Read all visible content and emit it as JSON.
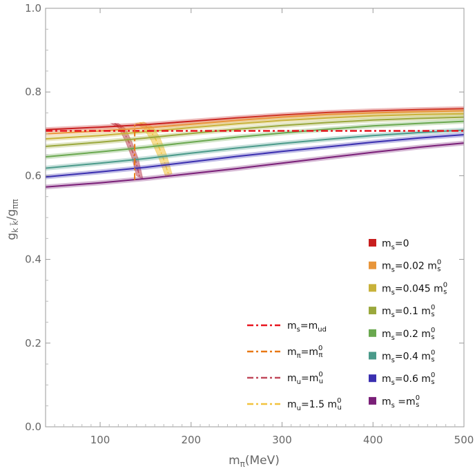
{
  "chart_data": {
    "type": "line",
    "title": "",
    "xlabel": {
      "base": "m",
      "sub": "π",
      "unit": "(MeV)"
    },
    "ylabel": {
      "base": "g",
      "sub": "k k̄",
      "sep": "/",
      "base2": "g",
      "sub2": "ππ"
    },
    "xlim": [
      40,
      500
    ],
    "ylim": [
      0.0,
      1.0
    ],
    "xticks": [
      100,
      200,
      300,
      400,
      500
    ],
    "yticks": [
      0.0,
      0.2,
      0.4,
      0.6,
      0.8,
      1.0
    ],
    "ytick_labels": [
      "0.0",
      "0.2",
      "0.4",
      "0.6",
      "0.8",
      "1.0"
    ],
    "grid": false,
    "x": [
      40,
      100,
      150,
      200,
      250,
      300,
      350,
      400,
      450,
      500
    ],
    "series": [
      {
        "name": "ms=0",
        "base": "m",
        "sub": "s",
        "text": "=0",
        "color": "#c81e1e",
        "values": [
          0.71,
          0.716,
          0.722,
          0.73,
          0.738,
          0.745,
          0.751,
          0.755,
          0.758,
          0.76
        ]
      },
      {
        "name": "ms=0.02 ms0",
        "base": "m",
        "sub": "s",
        "text": "=0.02 m",
        "tail_sup": "0",
        "tail_sub": "s",
        "color": "#e8953a",
        "values": [
          0.7,
          0.707,
          0.714,
          0.723,
          0.732,
          0.74,
          0.746,
          0.75,
          0.753,
          0.755
        ]
      },
      {
        "name": "ms=0.045 ms0",
        "base": "m",
        "sub": "s",
        "text": "=0.045 m",
        "tail_sup": "0",
        "tail_sub": "s",
        "color": "#c8b23a",
        "values": [
          0.688,
          0.696,
          0.705,
          0.715,
          0.724,
          0.732,
          0.738,
          0.743,
          0.746,
          0.748
        ]
      },
      {
        "name": "ms=0.1 ms0",
        "base": "m",
        "sub": "s",
        "text": "=0.1 m",
        "tail_sup": "0",
        "tail_sub": "s",
        "color": "#9aa83c",
        "values": [
          0.67,
          0.68,
          0.69,
          0.701,
          0.711,
          0.72,
          0.727,
          0.733,
          0.737,
          0.74
        ]
      },
      {
        "name": "ms=0.2 ms0",
        "base": "m",
        "sub": "s",
        "text": "=0.2 m",
        "tail_sup": "0",
        "tail_sub": "s",
        "color": "#6aa84f",
        "values": [
          0.645,
          0.657,
          0.668,
          0.68,
          0.692,
          0.702,
          0.711,
          0.719,
          0.725,
          0.73
        ]
      },
      {
        "name": "ms=0.4 ms0",
        "base": "m",
        "sub": "s",
        "text": "=0.4 m",
        "tail_sup": "0",
        "tail_sub": "s",
        "color": "#4a9a8a",
        "values": [
          0.618,
          0.63,
          0.641,
          0.654,
          0.666,
          0.677,
          0.687,
          0.696,
          0.703,
          0.709
        ]
      },
      {
        "name": "ms=0.6 ms0",
        "base": "m",
        "sub": "s",
        "text": "=0.6 m",
        "tail_sup": "0",
        "tail_sub": "s",
        "color": "#3a2fb0",
        "values": [
          0.597,
          0.609,
          0.62,
          0.633,
          0.646,
          0.658,
          0.669,
          0.68,
          0.69,
          0.698
        ]
      },
      {
        "name": "ms=ms0",
        "base": "m",
        "sub": "s",
        "text": " =m",
        "tail_sup": "0",
        "tail_sub": "s",
        "color": "#7a1f78",
        "values": [
          0.573,
          0.583,
          0.593,
          0.605,
          0.617,
          0.63,
          0.643,
          0.656,
          0.668,
          0.678
        ]
      }
    ],
    "reference_lines": [
      {
        "name": "ms=mud",
        "orientation": "horizontal",
        "value": 0.707,
        "color": "#e8141e",
        "dash": "dashdot",
        "base": "m",
        "sub": "s",
        "text": "=m",
        "tail_sub": "ud"
      },
      {
        "name": "mπ=mπ0",
        "orientation": "vertical",
        "value": 138,
        "range": [
          0.59,
          0.725
        ],
        "color": "#e87814",
        "dash": "dashdot",
        "base": "m",
        "sub": "π",
        "text": "=m",
        "tail_sup": "0",
        "tail_sub": "π"
      }
    ],
    "bands": [
      {
        "name": "mu=mu0",
        "color": "#c0485a",
        "dash": "dot",
        "upper": [
          [
            112,
            0.725
          ],
          [
            120,
            0.715
          ],
          [
            128,
            0.682
          ],
          [
            135,
            0.642
          ],
          [
            140,
            0.6
          ]
        ],
        "lower": [
          [
            120,
            0.725
          ],
          [
            128,
            0.712
          ],
          [
            135,
            0.68
          ],
          [
            142,
            0.64
          ],
          [
            147,
            0.592
          ]
        ],
        "base": "m",
        "sub": "u",
        "text": "=m",
        "tail_sup": "0",
        "tail_sub": "u"
      },
      {
        "name": "mu=1.5 mu0",
        "color": "#f2c23c",
        "dash": "dot",
        "upper": [
          [
            139,
            0.725
          ],
          [
            148,
            0.713
          ],
          [
            156,
            0.685
          ],
          [
            164,
            0.645
          ],
          [
            172,
            0.598
          ]
        ],
        "lower": [
          [
            148,
            0.728
          ],
          [
            158,
            0.716
          ],
          [
            166,
            0.69
          ],
          [
            173,
            0.65
          ],
          [
            179,
            0.605
          ]
        ],
        "base": "m",
        "sub": "u",
        "text": "=1.5 m",
        "tail_sup": "0",
        "tail_sub": "u"
      }
    ],
    "legend_placement": "bottom-right"
  }
}
